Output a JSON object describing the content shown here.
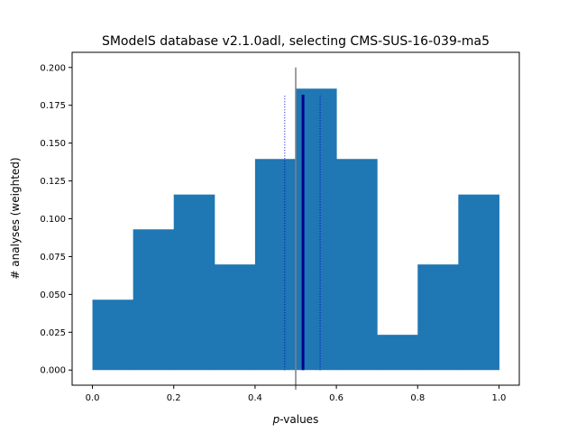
{
  "chart_data": {
    "type": "bar",
    "title": "SModelS database v2.1.0adl, selecting CMS-SUS-16-039-ma5",
    "xlabel_italic": "p",
    "xlabel_rest": "-values",
    "ylabel": "# analyses (weighted)",
    "xlim": [
      -0.05,
      1.05
    ],
    "ylim": [
      -0.01,
      0.21
    ],
    "x_ticks": [
      "0.0",
      "0.2",
      "0.4",
      "0.6",
      "0.8",
      "1.0"
    ],
    "y_ticks": [
      "0.000",
      "0.025",
      "0.050",
      "0.075",
      "0.100",
      "0.125",
      "0.150",
      "0.175",
      "0.200"
    ],
    "bin_edges": [
      0.0,
      0.1,
      0.2,
      0.3,
      0.4,
      0.5,
      0.6,
      0.7,
      0.8,
      0.9,
      1.0
    ],
    "values": [
      0.0465,
      0.093,
      0.116,
      0.0698,
      0.1395,
      0.186,
      0.1395,
      0.0233,
      0.0698,
      0.116
    ],
    "bar_color": "#1f77b4",
    "reference_line": {
      "x": 0.5,
      "y_range": [
        -0.013,
        0.2
      ],
      "color": "#808080"
    },
    "mean_line": {
      "x": 0.518,
      "y_range": [
        0.0,
        0.182
      ],
      "color": "#00008b"
    },
    "error_lines": [
      {
        "x": 0.473,
        "y_range": [
          0.0,
          0.182
        ],
        "color": "#0000cd"
      },
      {
        "x": 0.56,
        "y_range": [
          0.0,
          0.182
        ],
        "color": "#0000cd"
      }
    ]
  }
}
